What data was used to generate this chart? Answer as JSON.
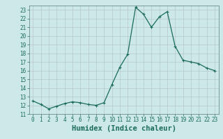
{
  "x": [
    0,
    1,
    2,
    3,
    4,
    5,
    6,
    7,
    8,
    9,
    10,
    11,
    12,
    13,
    14,
    15,
    16,
    17,
    18,
    19,
    20,
    21,
    22,
    23
  ],
  "y": [
    12.5,
    12.1,
    11.6,
    11.9,
    12.2,
    12.4,
    12.3,
    12.1,
    12.0,
    12.3,
    14.4,
    16.4,
    17.9,
    23.3,
    22.5,
    21.0,
    22.2,
    22.8,
    18.8,
    17.2,
    17.0,
    16.8,
    16.3,
    16.0
  ],
  "line_color": "#1a6b5a",
  "marker": "+",
  "marker_color": "#1a6b5a",
  "bg_color": "#cce8e8",
  "grid_major_color": "#b8c8c8",
  "grid_minor_color": "#d4e4e4",
  "xlabel": "Humidex (Indice chaleur)",
  "tick_color": "#1a6b5a",
  "axis_color": "#5a7a7a",
  "ylim": [
    11,
    23.5
  ],
  "xlim": [
    -0.5,
    23.5
  ],
  "yticks": [
    11,
    12,
    13,
    14,
    15,
    16,
    17,
    18,
    19,
    20,
    21,
    22,
    23
  ],
  "xticks": [
    0,
    1,
    2,
    3,
    4,
    5,
    6,
    7,
    8,
    9,
    10,
    11,
    12,
    13,
    14,
    15,
    16,
    17,
    18,
    19,
    20,
    21,
    22,
    23
  ],
  "tick_fontsize": 5.5,
  "xlabel_fontsize": 7.5,
  "linewidth": 0.9,
  "markersize": 2.5
}
